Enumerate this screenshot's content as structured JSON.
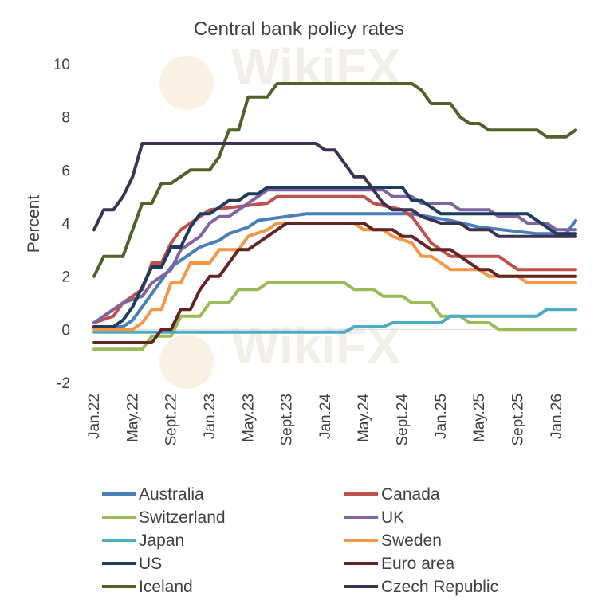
{
  "chart_data": {
    "type": "line",
    "title": "Central bank policy rates",
    "xlabel": "",
    "ylabel": "Percent",
    "ylim": [
      -2,
      10
    ],
    "yticks": [
      -2,
      0,
      2,
      4,
      6,
      8,
      10
    ],
    "x_tick_labels": [
      "Jan.22",
      "May.22",
      "Sept.22",
      "Jan.23",
      "May.23",
      "Sept.23",
      "Jan.24",
      "May.24",
      "Sept.24",
      "Jan.25",
      "May.25",
      "Sept.25",
      "Jan.26"
    ],
    "x_tick_months": [
      0,
      4,
      8,
      12,
      16,
      20,
      24,
      28,
      32,
      36,
      40,
      44,
      48
    ],
    "x_range_months": [
      0,
      50
    ],
    "legend_position": "bottom",
    "series": [
      {
        "name": "Australia",
        "color": "#4a7ebb",
        "points": [
          [
            0,
            0.1
          ],
          [
            3,
            0.1
          ],
          [
            4,
            0.35
          ],
          [
            5,
            0.85
          ],
          [
            6,
            1.35
          ],
          [
            7,
            1.85
          ],
          [
            8,
            2.35
          ],
          [
            9,
            2.6
          ],
          [
            10,
            2.85
          ],
          [
            11,
            3.1
          ],
          [
            13,
            3.35
          ],
          [
            14,
            3.6
          ],
          [
            16,
            3.85
          ],
          [
            17,
            4.1
          ],
          [
            22,
            4.35
          ],
          [
            33,
            4.35
          ],
          [
            37,
            4.1
          ],
          [
            40,
            3.85
          ],
          [
            46,
            3.6
          ],
          [
            49,
            3.6
          ],
          [
            50,
            4.1
          ]
        ]
      },
      {
        "name": "Canada",
        "color": "#c0504d",
        "points": [
          [
            0,
            0.25
          ],
          [
            2,
            0.5
          ],
          [
            3,
            1.0
          ],
          [
            5,
            1.5
          ],
          [
            6,
            2.5
          ],
          [
            7,
            2.5
          ],
          [
            8,
            3.25
          ],
          [
            9,
            3.75
          ],
          [
            11,
            4.25
          ],
          [
            12,
            4.5
          ],
          [
            18,
            4.75
          ],
          [
            19,
            5.0
          ],
          [
            28,
            5.0
          ],
          [
            29,
            4.75
          ],
          [
            32,
            4.5
          ],
          [
            33,
            4.25
          ],
          [
            34,
            3.75
          ],
          [
            35,
            3.25
          ],
          [
            36,
            3.0
          ],
          [
            37,
            2.75
          ],
          [
            42,
            2.75
          ],
          [
            43,
            2.5
          ],
          [
            44,
            2.25
          ],
          [
            50,
            2.25
          ]
        ]
      },
      {
        "name": "Switzerland",
        "color": "#9bbb59",
        "points": [
          [
            0,
            -0.75
          ],
          [
            5,
            -0.75
          ],
          [
            6,
            -0.25
          ],
          [
            8,
            -0.25
          ],
          [
            9,
            0.5
          ],
          [
            11,
            0.5
          ],
          [
            12,
            1.0
          ],
          [
            14,
            1.0
          ],
          [
            15,
            1.5
          ],
          [
            17,
            1.5
          ],
          [
            18,
            1.75
          ],
          [
            26,
            1.75
          ],
          [
            27,
            1.5
          ],
          [
            29,
            1.5
          ],
          [
            30,
            1.25
          ],
          [
            32,
            1.25
          ],
          [
            33,
            1.0
          ],
          [
            35,
            1.0
          ],
          [
            36,
            0.5
          ],
          [
            38,
            0.5
          ],
          [
            39,
            0.25
          ],
          [
            41,
            0.25
          ],
          [
            42,
            0.0
          ],
          [
            50,
            0.0
          ]
        ]
      },
      {
        "name": "UK",
        "color": "#8064a2",
        "points": [
          [
            0,
            0.25
          ],
          [
            1,
            0.5
          ],
          [
            2,
            0.75
          ],
          [
            3,
            1.0
          ],
          [
            5,
            1.25
          ],
          [
            6,
            1.75
          ],
          [
            8,
            2.25
          ],
          [
            9,
            3.0
          ],
          [
            11,
            3.5
          ],
          [
            12,
            4.0
          ],
          [
            13,
            4.25
          ],
          [
            14,
            4.25
          ],
          [
            15,
            4.5
          ],
          [
            17,
            5.0
          ],
          [
            18,
            5.25
          ],
          [
            30,
            5.25
          ],
          [
            31,
            5.0
          ],
          [
            33,
            5.0
          ],
          [
            34,
            4.75
          ],
          [
            37,
            4.75
          ],
          [
            38,
            4.5
          ],
          [
            41,
            4.5
          ],
          [
            42,
            4.25
          ],
          [
            44,
            4.25
          ],
          [
            45,
            4.0
          ],
          [
            47,
            4.0
          ],
          [
            48,
            3.75
          ],
          [
            50,
            3.75
          ]
        ]
      },
      {
        "name": "Japan",
        "color": "#4bacc6",
        "points": [
          [
            0,
            -0.1
          ],
          [
            26,
            -0.1
          ],
          [
            27,
            0.1
          ],
          [
            30,
            0.1
          ],
          [
            31,
            0.25
          ],
          [
            36,
            0.25
          ],
          [
            37,
            0.5
          ],
          [
            46,
            0.5
          ],
          [
            47,
            0.75
          ],
          [
            50,
            0.75
          ]
        ]
      },
      {
        "name": "Sweden",
        "color": "#f79646",
        "points": [
          [
            0,
            0.0
          ],
          [
            4,
            0.0
          ],
          [
            5,
            0.25
          ],
          [
            6,
            0.75
          ],
          [
            7,
            0.75
          ],
          [
            8,
            1.75
          ],
          [
            9,
            1.75
          ],
          [
            10,
            2.5
          ],
          [
            12,
            2.5
          ],
          [
            13,
            3.0
          ],
          [
            15,
            3.0
          ],
          [
            16,
            3.5
          ],
          [
            18,
            3.75
          ],
          [
            19,
            4.0
          ],
          [
            27,
            4.0
          ],
          [
            28,
            3.75
          ],
          [
            30,
            3.75
          ],
          [
            31,
            3.5
          ],
          [
            33,
            3.25
          ],
          [
            34,
            2.75
          ],
          [
            35,
            2.75
          ],
          [
            36,
            2.5
          ],
          [
            37,
            2.25
          ],
          [
            40,
            2.25
          ],
          [
            41,
            2.0
          ],
          [
            44,
            2.0
          ],
          [
            45,
            1.75
          ],
          [
            50,
            1.75
          ]
        ]
      },
      {
        "name": "US",
        "color": "#1f3c5f",
        "points": [
          [
            0,
            0.1
          ],
          [
            2,
            0.1
          ],
          [
            3,
            0.35
          ],
          [
            4,
            0.85
          ],
          [
            5,
            1.6
          ],
          [
            6,
            2.35
          ],
          [
            7,
            2.35
          ],
          [
            8,
            3.1
          ],
          [
            9,
            3.1
          ],
          [
            10,
            3.85
          ],
          [
            11,
            4.35
          ],
          [
            12,
            4.35
          ],
          [
            13,
            4.6
          ],
          [
            14,
            4.85
          ],
          [
            15,
            4.85
          ],
          [
            16,
            5.1
          ],
          [
            17,
            5.1
          ],
          [
            18,
            5.35
          ],
          [
            32,
            5.35
          ],
          [
            33,
            4.85
          ],
          [
            34,
            4.85
          ],
          [
            35,
            4.6
          ],
          [
            36,
            4.35
          ],
          [
            45,
            4.35
          ],
          [
            46,
            4.1
          ],
          [
            47,
            3.85
          ],
          [
            48,
            3.6
          ],
          [
            50,
            3.6
          ]
        ]
      },
      {
        "name": "Euro area",
        "color": "#632523",
        "points": [
          [
            0,
            -0.5
          ],
          [
            6,
            -0.5
          ],
          [
            7,
            0.0
          ],
          [
            8,
            0.0
          ],
          [
            9,
            0.75
          ],
          [
            10,
            0.75
          ],
          [
            11,
            1.5
          ],
          [
            12,
            2.0
          ],
          [
            13,
            2.0
          ],
          [
            14,
            2.5
          ],
          [
            15,
            3.0
          ],
          [
            16,
            3.0
          ],
          [
            17,
            3.25
          ],
          [
            18,
            3.5
          ],
          [
            19,
            3.75
          ],
          [
            20,
            4.0
          ],
          [
            28,
            4.0
          ],
          [
            29,
            3.75
          ],
          [
            31,
            3.75
          ],
          [
            32,
            3.5
          ],
          [
            33,
            3.5
          ],
          [
            34,
            3.25
          ],
          [
            35,
            3.0
          ],
          [
            37,
            3.0
          ],
          [
            38,
            2.75
          ],
          [
            39,
            2.5
          ],
          [
            40,
            2.25
          ],
          [
            41,
            2.25
          ],
          [
            42,
            2.0
          ],
          [
            50,
            2.0
          ]
        ]
      },
      {
        "name": "Iceland",
        "color": "#4f6228",
        "points": [
          [
            0,
            2.0
          ],
          [
            1,
            2.75
          ],
          [
            3,
            2.75
          ],
          [
            4,
            3.75
          ],
          [
            5,
            4.75
          ],
          [
            6,
            4.75
          ],
          [
            7,
            5.5
          ],
          [
            8,
            5.5
          ],
          [
            9,
            5.75
          ],
          [
            10,
            6.0
          ],
          [
            12,
            6.0
          ],
          [
            13,
            6.5
          ],
          [
            14,
            7.5
          ],
          [
            15,
            7.5
          ],
          [
            16,
            8.75
          ],
          [
            18,
            8.75
          ],
          [
            19,
            9.25
          ],
          [
            33,
            9.25
          ],
          [
            34,
            9.0
          ],
          [
            35,
            8.5
          ],
          [
            37,
            8.5
          ],
          [
            38,
            8.0
          ],
          [
            39,
            7.75
          ],
          [
            40,
            7.75
          ],
          [
            41,
            7.5
          ],
          [
            46,
            7.5
          ],
          [
            47,
            7.25
          ],
          [
            49,
            7.25
          ],
          [
            50,
            7.5
          ]
        ]
      },
      {
        "name": "Czech Republic",
        "color": "#3f3151",
        "points": [
          [
            0,
            3.75
          ],
          [
            1,
            4.5
          ],
          [
            2,
            4.5
          ],
          [
            3,
            5.0
          ],
          [
            4,
            5.75
          ],
          [
            5,
            7.0
          ],
          [
            23,
            7.0
          ],
          [
            24,
            6.75
          ],
          [
            25,
            6.75
          ],
          [
            26,
            6.25
          ],
          [
            27,
            5.75
          ],
          [
            28,
            5.75
          ],
          [
            29,
            5.25
          ],
          [
            30,
            4.75
          ],
          [
            31,
            4.5
          ],
          [
            33,
            4.5
          ],
          [
            34,
            4.25
          ],
          [
            36,
            4.0
          ],
          [
            38,
            4.0
          ],
          [
            39,
            3.75
          ],
          [
            41,
            3.75
          ],
          [
            42,
            3.5
          ],
          [
            50,
            3.5
          ]
        ]
      }
    ],
    "watermark": "WikiFX"
  }
}
